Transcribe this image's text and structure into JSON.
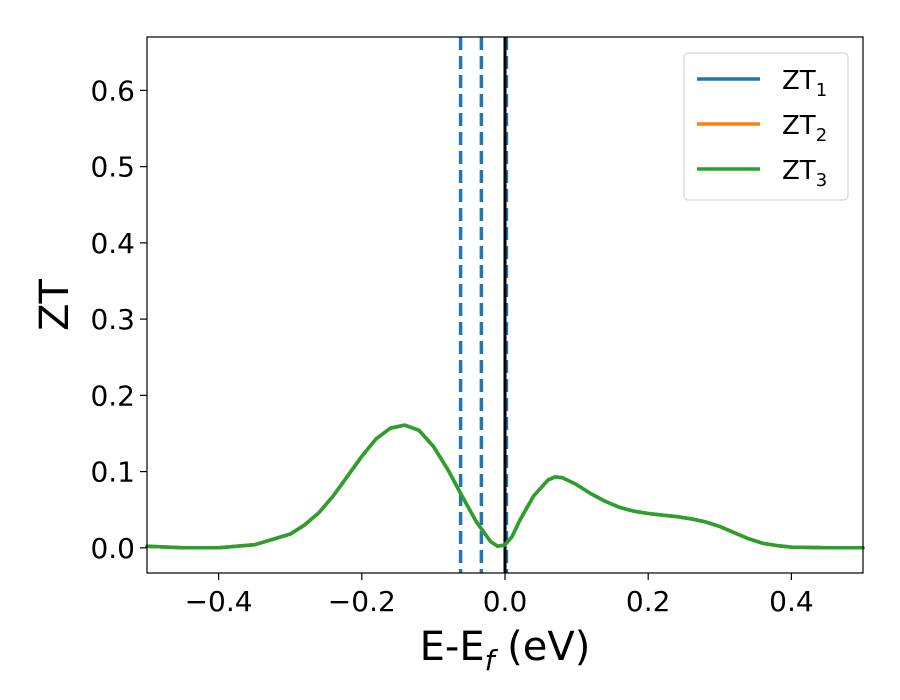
{
  "chart_data": {
    "type": "line",
    "title": "",
    "xlabel": {
      "main": "E-E",
      "sub": "f",
      "suffix": " (eV)"
    },
    "ylabel": "ZT",
    "xlim": [
      -0.5,
      0.5
    ],
    "ylim": [
      -0.033,
      0.67
    ],
    "xticks": [
      {
        "value": -0.4,
        "label": "−0.4"
      },
      {
        "value": -0.2,
        "label": "−0.2"
      },
      {
        "value": 0.0,
        "label": "0.0"
      },
      {
        "value": 0.2,
        "label": "0.2"
      },
      {
        "value": 0.4,
        "label": "0.4"
      }
    ],
    "yticks": [
      {
        "value": 0.0,
        "label": "0.0"
      },
      {
        "value": 0.1,
        "label": "0.1"
      },
      {
        "value": 0.2,
        "label": "0.2"
      },
      {
        "value": 0.3,
        "label": "0.3"
      },
      {
        "value": 0.4,
        "label": "0.4"
      },
      {
        "value": 0.5,
        "label": "0.5"
      },
      {
        "value": 0.6,
        "label": "0.6"
      }
    ],
    "grid": false,
    "legend_position": "top-right",
    "reference_lines": [
      {
        "x": -0.062,
        "style": "dashed",
        "color": "#1f77b4"
      },
      {
        "x": -0.033,
        "style": "dashed",
        "color": "#1f77b4"
      },
      {
        "x": 0.002,
        "style": "dashed",
        "color": "#1f77b4"
      },
      {
        "x": 0.0,
        "style": "solid",
        "color": "#000000"
      }
    ],
    "x": [
      -0.5,
      -0.45,
      -0.4,
      -0.35,
      -0.3,
      -0.28,
      -0.26,
      -0.24,
      -0.22,
      -0.2,
      -0.18,
      -0.16,
      -0.14,
      -0.12,
      -0.1,
      -0.08,
      -0.06,
      -0.04,
      -0.02,
      -0.01,
      0.0,
      0.01,
      0.02,
      0.04,
      0.06,
      0.07,
      0.08,
      0.1,
      0.12,
      0.14,
      0.16,
      0.18,
      0.2,
      0.22,
      0.24,
      0.26,
      0.28,
      0.3,
      0.32,
      0.34,
      0.36,
      0.38,
      0.4,
      0.45,
      0.5
    ],
    "series": [
      {
        "name": {
          "main": "ZT",
          "sub": "1"
        },
        "color": "#1f77b4",
        "values": [
          0.002,
          0.0,
          0.0,
          0.004,
          0.018,
          0.03,
          0.046,
          0.068,
          0.094,
          0.12,
          0.143,
          0.157,
          0.161,
          0.154,
          0.133,
          0.103,
          0.068,
          0.034,
          0.008,
          0.002,
          0.004,
          0.015,
          0.035,
          0.068,
          0.089,
          0.093,
          0.092,
          0.083,
          0.071,
          0.061,
          0.053,
          0.048,
          0.045,
          0.043,
          0.041,
          0.038,
          0.034,
          0.028,
          0.02,
          0.012,
          0.006,
          0.003,
          0.001,
          0.0,
          0.0
        ]
      },
      {
        "name": {
          "main": "ZT",
          "sub": "2"
        },
        "color": "#ff7f0e",
        "values": [
          0.002,
          0.0,
          0.0,
          0.004,
          0.018,
          0.03,
          0.046,
          0.068,
          0.094,
          0.12,
          0.143,
          0.157,
          0.161,
          0.154,
          0.133,
          0.103,
          0.068,
          0.034,
          0.008,
          0.002,
          0.004,
          0.015,
          0.035,
          0.068,
          0.089,
          0.093,
          0.092,
          0.083,
          0.071,
          0.061,
          0.053,
          0.048,
          0.045,
          0.043,
          0.041,
          0.038,
          0.034,
          0.028,
          0.02,
          0.012,
          0.006,
          0.003,
          0.001,
          0.0,
          0.0
        ]
      },
      {
        "name": {
          "main": "ZT",
          "sub": "3"
        },
        "color": "#2ca02c",
        "values": [
          0.002,
          0.0,
          0.0,
          0.004,
          0.018,
          0.03,
          0.046,
          0.068,
          0.094,
          0.12,
          0.143,
          0.157,
          0.161,
          0.154,
          0.133,
          0.103,
          0.068,
          0.034,
          0.008,
          0.002,
          0.004,
          0.015,
          0.035,
          0.068,
          0.089,
          0.093,
          0.092,
          0.083,
          0.071,
          0.061,
          0.053,
          0.048,
          0.045,
          0.043,
          0.041,
          0.038,
          0.034,
          0.028,
          0.02,
          0.012,
          0.006,
          0.003,
          0.001,
          0.0,
          0.0
        ]
      }
    ]
  }
}
